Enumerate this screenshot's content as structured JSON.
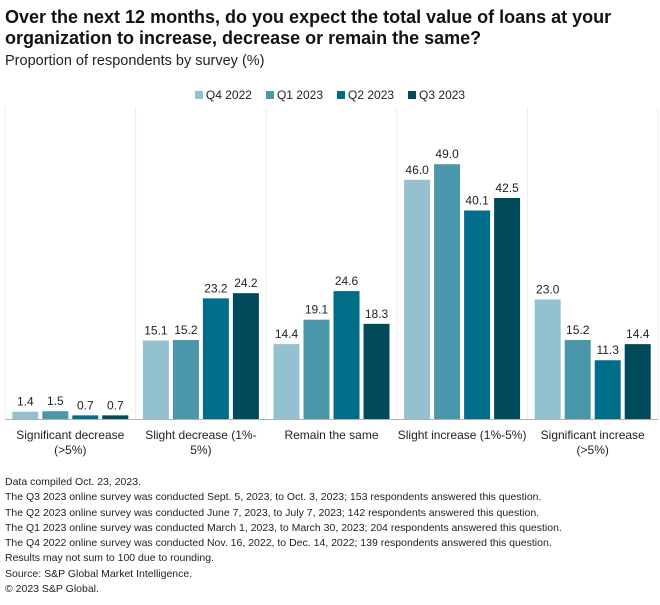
{
  "chart_data": {
    "type": "bar",
    "title": "Over the next 12 months, do you expect the total value of loans at your organization to increase, decrease or remain the same?",
    "subtitle": "Proportion of respondents by survey (%)",
    "xlabel": "",
    "ylabel": "",
    "ylim": [
      0,
      50
    ],
    "grid": false,
    "legend_position": "top-center",
    "categories": [
      [
        "Significant decrease",
        "(>5%)"
      ],
      [
        "Slight decrease (1%-",
        "5%)"
      ],
      [
        "Remain the same"
      ],
      [
        "Slight increase (1%-5%)"
      ],
      [
        "Significant increase",
        "(>5%)"
      ]
    ],
    "series": [
      {
        "name": "Q4 2022",
        "color": "#93C1CF",
        "values": [
          1.4,
          15.1,
          14.4,
          46.0,
          23.0
        ]
      },
      {
        "name": "Q1 2023",
        "color": "#4A97AB",
        "values": [
          1.5,
          15.2,
          19.1,
          49.0,
          15.2
        ]
      },
      {
        "name": "Q2 2023",
        "color": "#006E89",
        "values": [
          0.7,
          23.2,
          24.6,
          40.1,
          11.3
        ]
      },
      {
        "name": "Q3 2023",
        "color": "#004A5C",
        "values": [
          0.7,
          24.2,
          18.3,
          42.5,
          14.4
        ]
      }
    ]
  },
  "footnotes": [
    "Data compiled Oct. 23, 2023.",
    "The Q3 2023 online survey was conducted Sept. 5, 2023, to Oct. 3, 2023; 153 respondents answered this question.",
    "The Q2 2023 online survey was conducted June 7, 2023, to July 7, 2023; 142 respondents answered this question.",
    "The Q1 2023 online survey was conducted March 1, 2023, to March 30, 2023; 204 respondents answered this question.",
    "The Q4 2022 online survey was conducted Nov. 16, 2022, to Dec. 14, 2022; 139 respondents answered this question.",
    "Results may not sum to 100 due to rounding.",
    "Source: S&P Global Market Intelligence.",
    "© 2023 S&P Global."
  ]
}
